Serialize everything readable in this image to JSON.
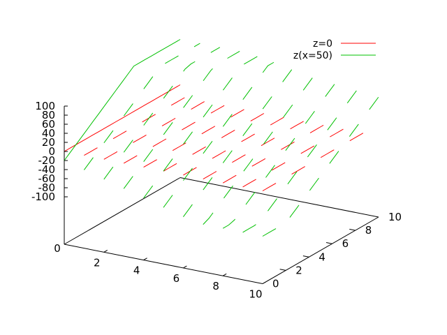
{
  "chart_data": {
    "type": "line",
    "subtype": "3d-splot",
    "title": "",
    "xlabel": "",
    "ylabel": "",
    "zlabel": "",
    "xlim": [
      0,
      10
    ],
    "ylim": [
      0,
      10
    ],
    "zlim": [
      -100,
      100
    ],
    "x_ticks": [
      "0",
      "2",
      "4",
      "6",
      "8",
      "10"
    ],
    "y_ticks": [
      "0",
      "2",
      "4",
      "6",
      "8",
      "10"
    ],
    "z_ticks": [
      "100",
      "80",
      "60",
      "40",
      "20",
      "0",
      "-20",
      "-40",
      "-60",
      "-80",
      "-100"
    ],
    "grid": false,
    "legend_position": "top-right",
    "colors": {
      "z0": "#ff0000",
      "zx50": "#00c000",
      "axis": "#000000"
    },
    "series": [
      {
        "name": "z=0",
        "color": "#ff0000",
        "description": "plane z=0 drawn as dashed segments along lines of constant x"
      },
      {
        "name": "z(x=50)",
        "color": "#00c000",
        "description": "surface z = 50 at x=0 rising steeply with y, drawn as dashed segments"
      }
    ]
  }
}
